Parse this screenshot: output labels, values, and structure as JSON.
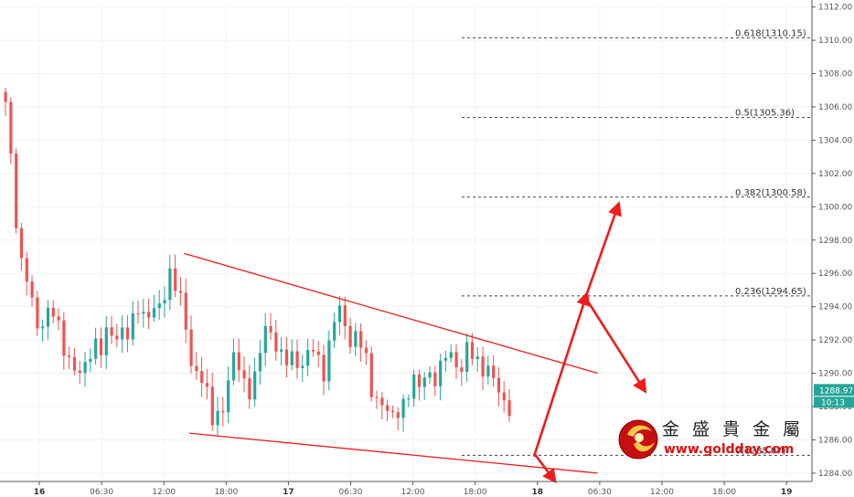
{
  "chart_data": {
    "type": "candlestick",
    "y_axis": {
      "ylim": [
        1283.5,
        1312.2
      ],
      "ticks": [
        "1312.00",
        "1310.00",
        "1308.00",
        "1306.00",
        "1304.00",
        "1302.00",
        "1300.00",
        "1298.00",
        "1296.00",
        "1294.00",
        "1292.00",
        "1290.00",
        "1288.00",
        "1286.00",
        "1284.00"
      ]
    },
    "x_axis": {
      "ticks": [
        {
          "label": "16",
          "bold": true
        },
        {
          "label": "06:30",
          "bold": false
        },
        {
          "label": "12:00",
          "bold": false
        },
        {
          "label": "18:00",
          "bold": false
        },
        {
          "label": "17",
          "bold": true
        },
        {
          "label": "06:30",
          "bold": false
        },
        {
          "label": "12:00",
          "bold": false
        },
        {
          "label": "18:00",
          "bold": false
        },
        {
          "label": "18",
          "bold": true
        },
        {
          "label": "06:30",
          "bold": false
        },
        {
          "label": "12:00",
          "bold": false
        },
        {
          "label": "18:00",
          "bold": false
        },
        {
          "label": "19",
          "bold": true
        }
      ]
    },
    "price_path": [
      1306,
      1302,
      1297,
      1296,
      1293.5,
      1292.5,
      1294,
      1293.5,
      1292,
      1291,
      1290.5,
      1289.5,
      1291,
      1292,
      1291.5,
      1292.5,
      1292,
      1293,
      1292,
      1294,
      1293.5,
      1294,
      1293.5,
      1294.5,
      1296.5,
      1295,
      1293,
      1290,
      1290.5,
      1289,
      1287,
      1287.5,
      1289,
      1291,
      1290,
      1289,
      1289.5,
      1291.5,
      1293,
      1292,
      1291,
      1290.5,
      1291,
      1290.5,
      1291.5,
      1291,
      1290,
      1292,
      1294,
      1293,
      1292,
      1292.5,
      1291,
      1289,
      1288.5,
      1288,
      1287,
      1288,
      1288.5,
      1289.5,
      1289,
      1290.5,
      1289.5,
      1290,
      1291.5,
      1291,
      1290,
      1291.5,
      1291,
      1290.5,
      1290,
      1289.3,
      1288.5,
      1288
    ],
    "candle_colors": {
      "up": "#26a69a",
      "down": "#ef5350"
    },
    "fibonacci_levels": [
      {
        "label": "0.618(1310.15)",
        "price": 1310.15
      },
      {
        "label": "0.5(1305.36)",
        "price": 1305.36
      },
      {
        "label": "0.382(1300.58)",
        "price": 1300.58
      },
      {
        "label": "0.236(1294.65)",
        "price": 1294.65
      },
      {
        "label": "0(1285.07)",
        "price": 1285.07
      }
    ],
    "channel_lines": [
      {
        "name": "upper-trendline",
        "from": [
          34.0,
          1297.2
        ],
        "to": [
          112.0,
          1290.0
        ]
      },
      {
        "name": "lower-trendline",
        "from": [
          35.0,
          1286.4
        ],
        "to": [
          112.0,
          1284.0
        ]
      }
    ],
    "arrows": [
      {
        "name": "breakout-up-arrow",
        "from": [
          100.0,
          1285.0
        ],
        "to": [
          110.0,
          1294.8
        ]
      },
      {
        "name": "target-up-arrow",
        "from": [
          110.0,
          1294.8
        ],
        "to": [
          116.0,
          1300.2
        ]
      },
      {
        "name": "pullback-arrow",
        "from": [
          110.0,
          1294.4
        ],
        "to": [
          121.0,
          1288.9
        ]
      },
      {
        "name": "breakdown-arrow",
        "from": [
          100.0,
          1285.2
        ],
        "to": [
          104.0,
          1283.5
        ]
      }
    ],
    "current_price": {
      "label": "1288.97",
      "value": 1288.97,
      "color": "#26a69a"
    },
    "countdown": {
      "label": "10:13",
      "color": "#26a69a"
    },
    "line_color": "#ee1c1c"
  },
  "watermark": {
    "name": "金 盛 貴 金 屬",
    "url": "www.goldday.com"
  }
}
